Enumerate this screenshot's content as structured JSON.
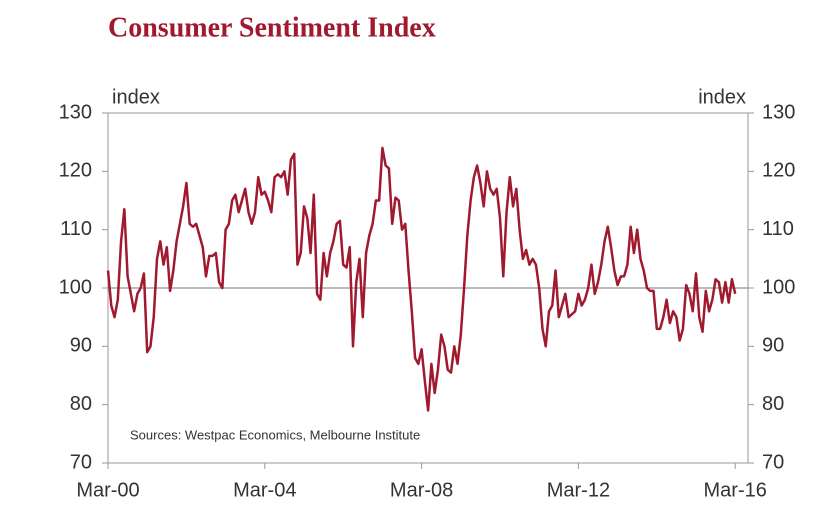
{
  "chart_data": {
    "type": "line",
    "title": "Consumer Sentiment Index",
    "y_label": "index",
    "y2_label": "index",
    "annotation": "Sources: Westpac Economics, Melbourne Institute",
    "categories": [
      "Mar-00",
      null,
      null,
      null,
      null,
      null,
      null,
      null,
      null,
      null,
      null,
      null,
      null,
      null,
      null,
      null,
      null,
      null,
      null,
      null,
      null,
      null,
      null,
      null,
      null,
      null,
      null,
      null,
      null,
      null,
      null,
      null,
      null,
      null,
      null,
      null,
      null,
      null,
      null,
      null,
      null,
      null,
      null,
      null,
      null,
      null,
      null,
      null,
      "Mar-04",
      null,
      null,
      null,
      null,
      null,
      null,
      null,
      null,
      null,
      null,
      null,
      null,
      null,
      null,
      null,
      null,
      null,
      null,
      null,
      null,
      null,
      null,
      null,
      null,
      null,
      null,
      null,
      null,
      null,
      null,
      null,
      null,
      null,
      null,
      null,
      null,
      null,
      null,
      null,
      null,
      null,
      null,
      null,
      null,
      null,
      null,
      null,
      "Mar-08",
      null,
      null,
      null,
      null,
      null,
      null,
      null,
      null,
      null,
      null,
      null,
      null,
      null,
      null,
      null,
      null,
      null,
      null,
      null,
      null,
      null,
      null,
      null,
      null,
      null,
      null,
      null,
      null,
      null,
      null,
      null,
      null,
      null,
      null,
      null,
      null,
      null,
      null,
      null,
      null,
      null,
      null,
      null,
      null,
      null,
      null,
      null,
      "Mar-12",
      null,
      null,
      null,
      null,
      null,
      null,
      null,
      null,
      null,
      null,
      null,
      null,
      null,
      null,
      null,
      null,
      null,
      null,
      null,
      null,
      null,
      null,
      null,
      null,
      null,
      null,
      null,
      null,
      null,
      null,
      null,
      null,
      null,
      null,
      null,
      null,
      null,
      null,
      null,
      null,
      null,
      null,
      null,
      null,
      null,
      null,
      null,
      "Mar-16"
    ],
    "series": [
      {
        "color": "#a0192e",
        "values": [
          103,
          97,
          95,
          98,
          108,
          113.5,
          102,
          99,
          96,
          99,
          100,
          102.5,
          89,
          90,
          95,
          105,
          108,
          104,
          107,
          99.5,
          103,
          108,
          111,
          114,
          118,
          111,
          110.5,
          111,
          109,
          107,
          102,
          105.5,
          105.5,
          106,
          101,
          100,
          110,
          111,
          115,
          116,
          113,
          115,
          117,
          113,
          111,
          113,
          119,
          116,
          116.5,
          115,
          113,
          119,
          119.5,
          119,
          120,
          116,
          122,
          123,
          104,
          106,
          114,
          112,
          106,
          116,
          99,
          98,
          106,
          102,
          106,
          108,
          111,
          111.5,
          104,
          103.5,
          107,
          90,
          101,
          105,
          95,
          106,
          109,
          111,
          115,
          115,
          124,
          121,
          120.5,
          111,
          115.5,
          115,
          110,
          111,
          103,
          96,
          88,
          87,
          89.5,
          84,
          79,
          87,
          82,
          86,
          92,
          90,
          86,
          85.5,
          90,
          87,
          92,
          100,
          109,
          115,
          119,
          121,
          118,
          114,
          120,
          117,
          116,
          117,
          112,
          102,
          113,
          119,
          114,
          117,
          110,
          105,
          106.5,
          104,
          105,
          104,
          100,
          93,
          90,
          96,
          97,
          103,
          95,
          97,
          99,
          95,
          95.5,
          96,
          99,
          97,
          98,
          100,
          104,
          99,
          101,
          104,
          108,
          110.5,
          107,
          103,
          100.5,
          102,
          102,
          104,
          110.5,
          106,
          110,
          105,
          103,
          100,
          99.5,
          99.5,
          93,
          93,
          95,
          98,
          94,
          96,
          95,
          91,
          93,
          100.5,
          99,
          96,
          102.5,
          95,
          92.5,
          99.5,
          96,
          98,
          101.5,
          101,
          97.5,
          101,
          97.5,
          101.5,
          99
        ]
      }
    ],
    "ylim": [
      70,
      130
    ],
    "yticks": [
      70,
      80,
      90,
      100,
      110,
      120,
      130
    ],
    "y2lim": [
      70,
      130
    ],
    "y2ticks": [
      70,
      80,
      90,
      100,
      110,
      120,
      130
    ],
    "reference_line": 100,
    "grid": false
  }
}
